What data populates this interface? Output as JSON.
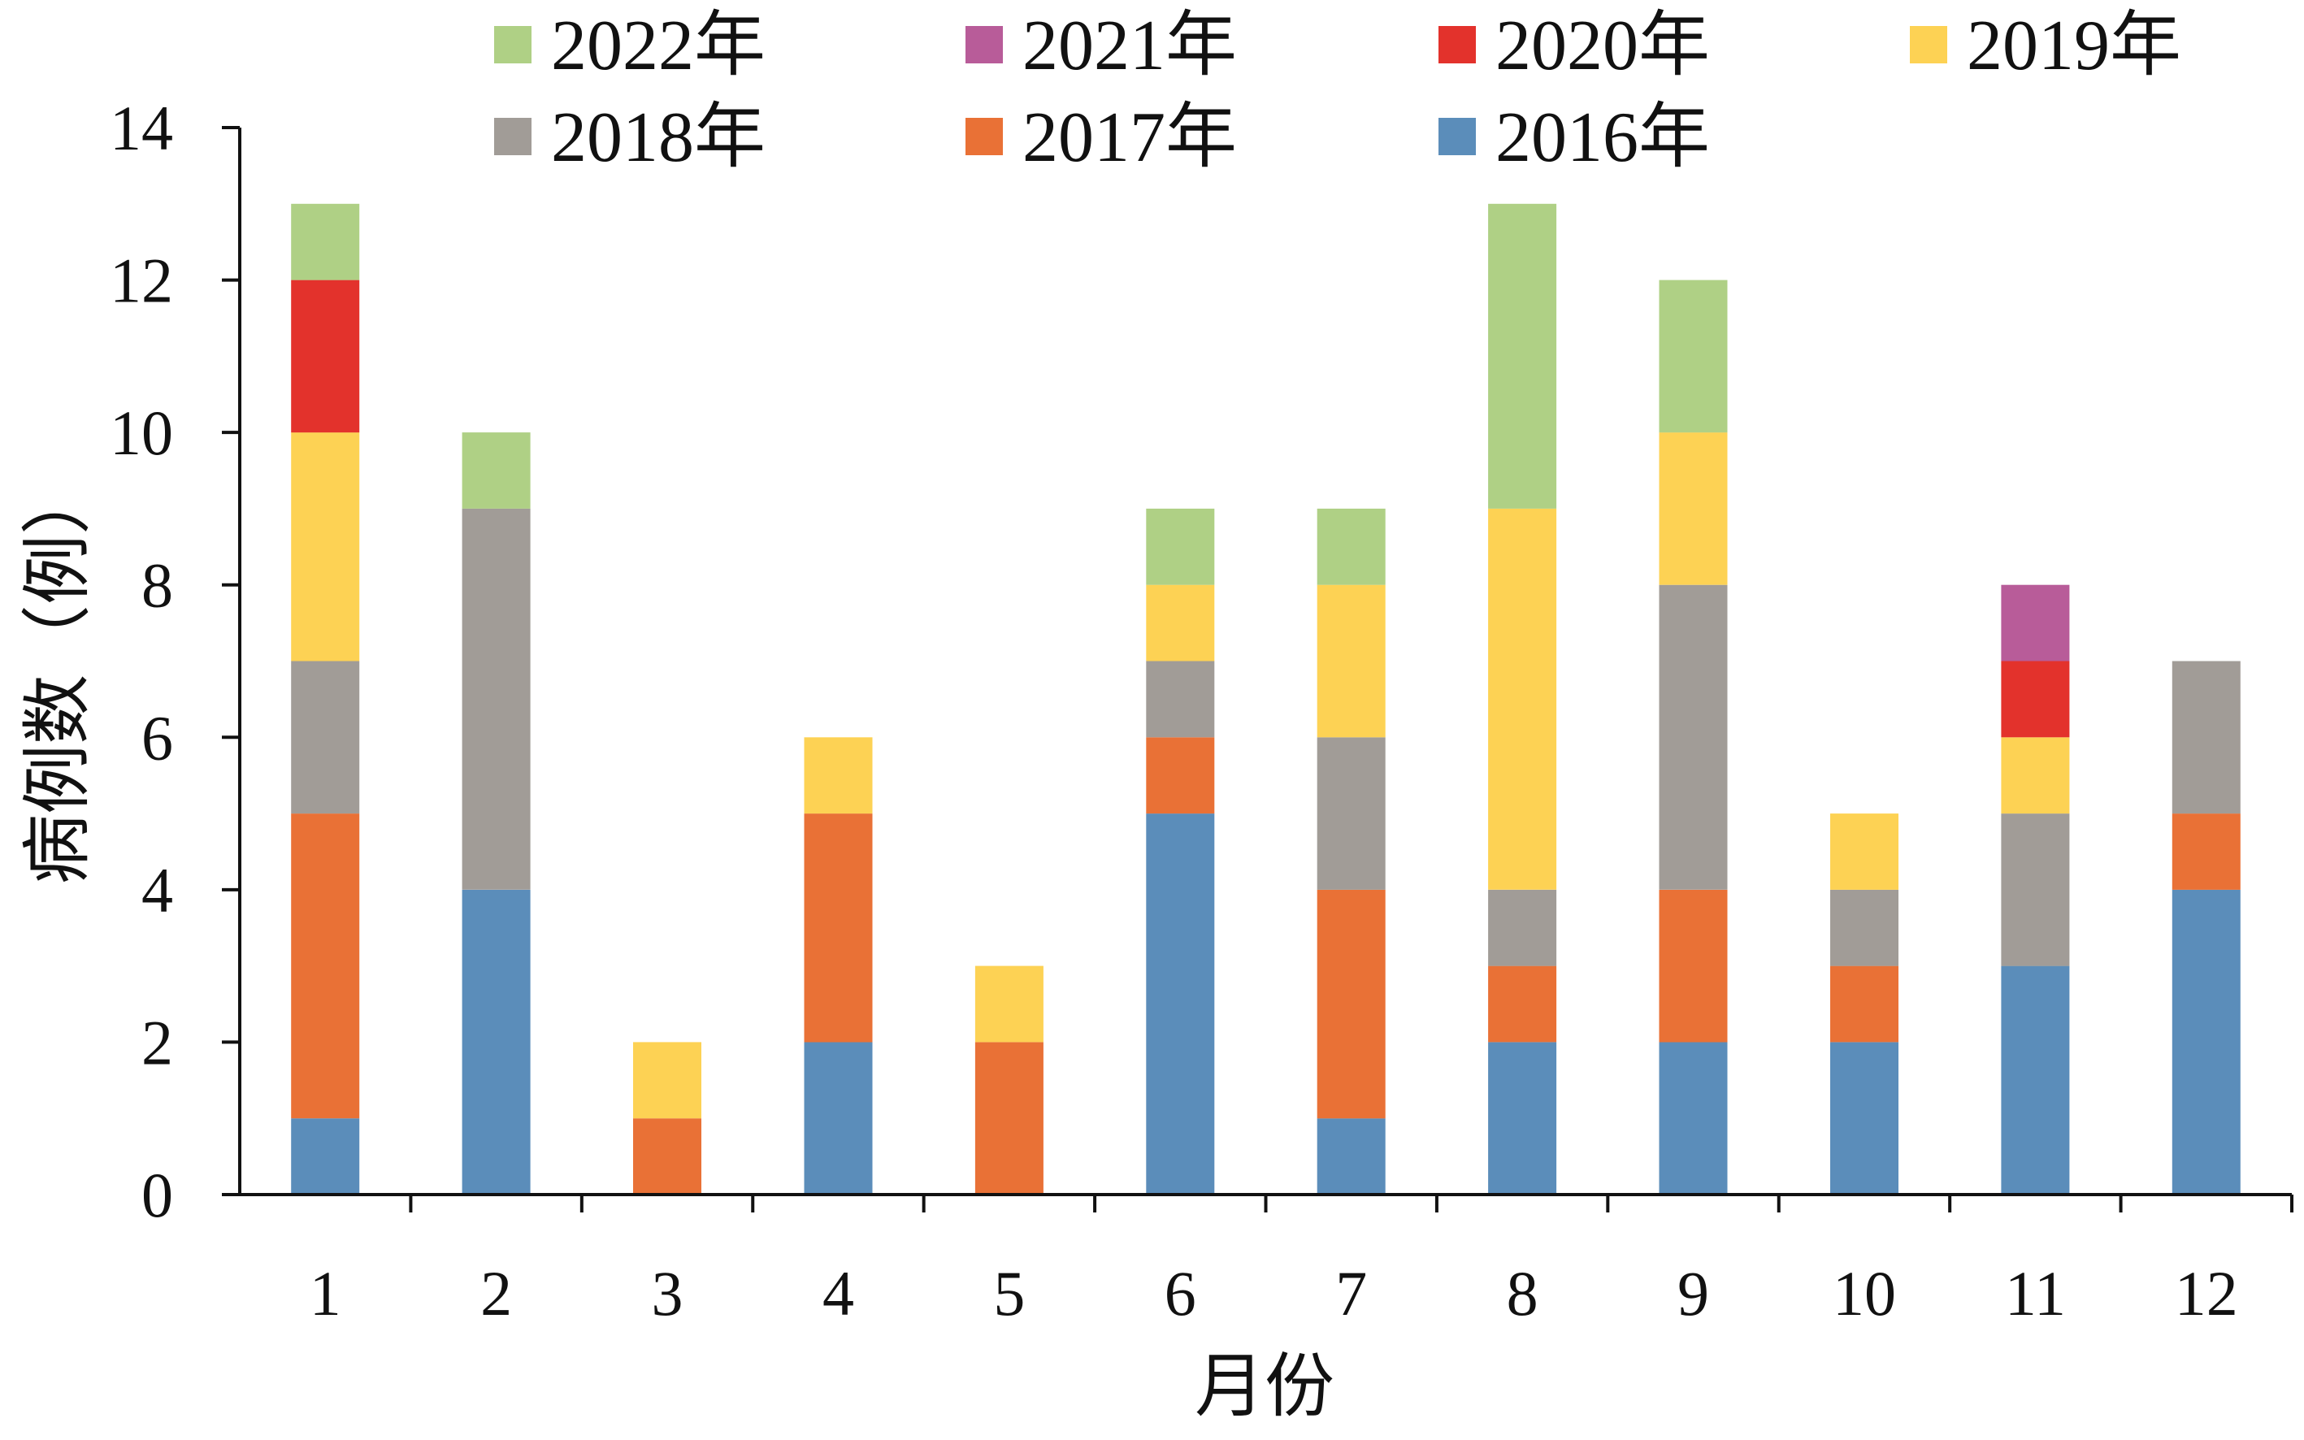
{
  "chart_data": {
    "type": "bar",
    "stacked": true,
    "title": "",
    "xlabel": "月份",
    "ylabel": "病例数（例）",
    "ylim": [
      0,
      14
    ],
    "yticks": [
      "0",
      "2",
      "4",
      "6",
      "8",
      "10",
      "12",
      "14"
    ],
    "categories": [
      "1",
      "2",
      "3",
      "4",
      "5",
      "6",
      "7",
      "8",
      "9",
      "10",
      "11",
      "12"
    ],
    "grid": false,
    "legend_position": "top",
    "series": [
      {
        "name": "2016年",
        "color": "#5B8DBA",
        "values": [
          1,
          4,
          0,
          2,
          0,
          5,
          1,
          2,
          2,
          2,
          3,
          4
        ]
      },
      {
        "name": "2017年",
        "color": "#E97136",
        "values": [
          4,
          0,
          1,
          3,
          2,
          1,
          3,
          1,
          2,
          1,
          0,
          1
        ]
      },
      {
        "name": "2018年",
        "color": "#A19C97",
        "values": [
          2,
          5,
          0,
          0,
          0,
          1,
          2,
          1,
          4,
          1,
          2,
          2
        ]
      },
      {
        "name": "2019年",
        "color": "#FDD254",
        "values": [
          3,
          0,
          1,
          1,
          1,
          1,
          2,
          5,
          2,
          1,
          1,
          0
        ]
      },
      {
        "name": "2020年",
        "color": "#E3322C",
        "values": [
          2,
          0,
          0,
          0,
          0,
          0,
          0,
          0,
          0,
          0,
          1,
          0
        ]
      },
      {
        "name": "2021年",
        "color": "#B85C99",
        "values": [
          0,
          0,
          0,
          0,
          0,
          0,
          0,
          0,
          0,
          0,
          1,
          0
        ]
      },
      {
        "name": "2022年",
        "color": "#AFD085",
        "values": [
          1,
          1,
          0,
          0,
          0,
          1,
          1,
          4,
          2,
          0,
          0,
          0
        ]
      }
    ],
    "legend_order": [
      "2022年",
      "2021年",
      "2020年",
      "2019年",
      "2018年",
      "2017年",
      "2016年"
    ]
  }
}
